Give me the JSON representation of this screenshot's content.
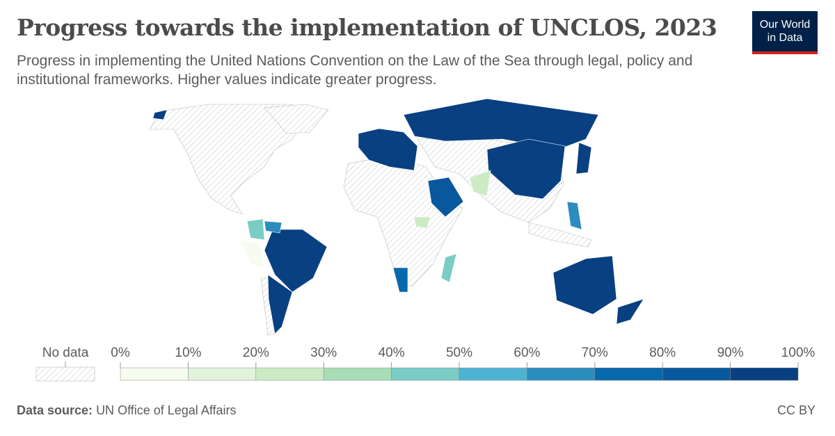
{
  "title": "Progress towards the implementation of UNCLOS, 2023",
  "subtitle": "Progress in implementing the United Nations Convention on the Law of the Sea through legal, policy and institutional frameworks. Higher values indicate greater progress.",
  "logo": {
    "line1": "Our World",
    "line2": "in Data"
  },
  "legend": {
    "no_data_label": "No data",
    "ticks": [
      "0%",
      "10%",
      "20%",
      "30%",
      "40%",
      "50%",
      "60%",
      "70%",
      "80%",
      "90%",
      "100%"
    ],
    "colors": [
      "#f7fcf0",
      "#e0f3db",
      "#ccebc5",
      "#a8ddb5",
      "#7bccc4",
      "#4eb3d3",
      "#2b8cbe",
      "#0868ac",
      "#08589e",
      "#084081"
    ]
  },
  "footer": {
    "source_label": "Data source:",
    "source": "UN Office of Legal Affairs",
    "license": "CC BY"
  }
}
